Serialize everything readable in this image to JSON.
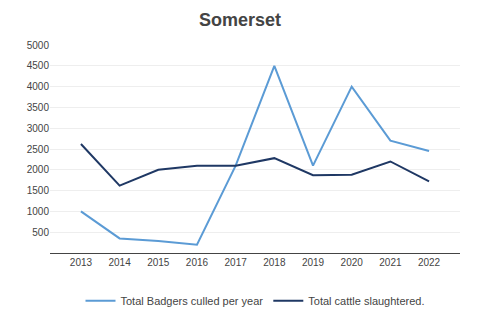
{
  "chart_data": {
    "type": "line",
    "title": "Somerset",
    "x": [
      2013,
      2014,
      2015,
      2016,
      2017,
      2018,
      2019,
      2020,
      2021,
      2022
    ],
    "series": [
      {
        "name": "Total Badgers culled per year",
        "color": "#5B9BD5",
        "values": [
          1000,
          350,
          290,
          200,
          2100,
          4500,
          2100,
          4000,
          2700,
          2450
        ]
      },
      {
        "name": "Total cattle slaughtered.",
        "color": "#1F3864",
        "values": [
          2620,
          1620,
          2000,
          2100,
          2100,
          2280,
          1870,
          1880,
          2200,
          1720
        ]
      }
    ],
    "xlim": [
      2012.2,
      2022.8
    ],
    "xticks": [
      2013,
      2014,
      2015,
      2016,
      2017,
      2018,
      2019,
      2020,
      2021,
      2022
    ],
    "ylim": [
      0,
      5000
    ],
    "yticks": [
      {
        "value": 0,
        "label": ""
      },
      500,
      1000,
      1500,
      2000,
      2500,
      3000,
      3500,
      4000,
      4500,
      5000
    ],
    "grid": true,
    "legend": "bottom"
  }
}
